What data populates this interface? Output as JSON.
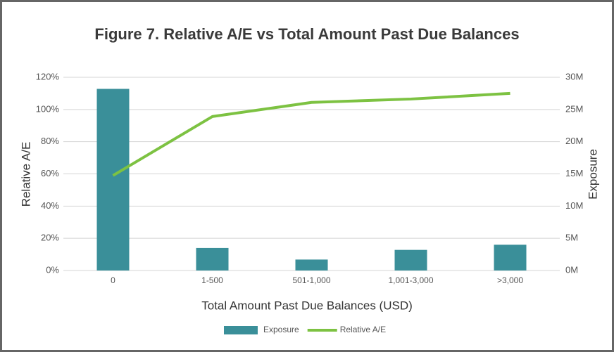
{
  "chart_data": {
    "type": "bar",
    "title": "Figure 7. Relative A/E vs Total Amount Past Due Balances",
    "x_label": "Total Amount Past Due Balances (USD)",
    "y_label": "Relative A/E",
    "y2_label": "Exposure",
    "categories": [
      "0",
      "1-500",
      "501-1,000",
      "1,001-3,000",
      ">3,000"
    ],
    "series": [
      {
        "name": "Exposure",
        "color": "#3a8f99",
        "type": "bar",
        "axis": "y2",
        "values": [
          28.2,
          3.5,
          1.7,
          3.2,
          4.0
        ]
      },
      {
        "name": "Relative A/E",
        "color": "#7dc242",
        "type": "line",
        "values": [
          59,
          95.6,
          104.4,
          106.5,
          110
        ]
      }
    ],
    "ylim": [
      0,
      120
    ],
    "yticks": [
      {
        "value": 0,
        "label": "0%"
      },
      {
        "value": 20,
        "label": "20%"
      },
      {
        "value": 40,
        "label": "40%"
      },
      {
        "value": 60,
        "label": "60%"
      },
      {
        "value": 80,
        "label": "80%"
      },
      {
        "value": 100,
        "label": "100%"
      },
      {
        "value": 120,
        "label": "120%"
      }
    ],
    "y2lim": [
      0,
      30
    ],
    "y2ticks": [
      {
        "value": 0,
        "label": "0M"
      },
      {
        "value": 5,
        "label": "5M"
      },
      {
        "value": 10,
        "label": "10M"
      },
      {
        "value": 15,
        "label": "15M"
      },
      {
        "value": 20,
        "label": "20M"
      },
      {
        "value": 25,
        "label": "25M"
      },
      {
        "value": 30,
        "label": "30M"
      }
    ],
    "grid": true,
    "legend": "bottom"
  }
}
